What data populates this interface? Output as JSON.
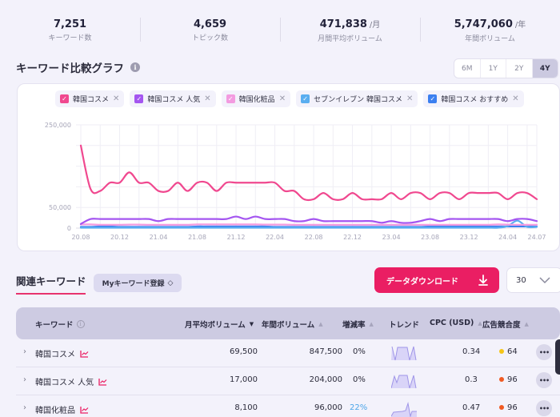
{
  "stats": [
    {
      "value": "7,251",
      "unit": "",
      "label": "キーワード数"
    },
    {
      "value": "4,659",
      "unit": "",
      "label": "トピック数"
    },
    {
      "value": "471,838",
      "unit": "/月",
      "label": "月間平均ボリューム"
    },
    {
      "value": "5,747,060",
      "unit": "/年",
      "label": "年間ボリューム"
    }
  ],
  "compare": {
    "title": "キーワード比較グラフ",
    "info_icon": "i",
    "ranges": [
      {
        "label": "6M",
        "active": false
      },
      {
        "label": "1Y",
        "active": false
      },
      {
        "label": "2Y",
        "active": false
      },
      {
        "label": "4Y",
        "active": true
      }
    ],
    "legend": [
      {
        "label": "韓国コスメ",
        "color": "#f0488f",
        "checked": true
      },
      {
        "label": "韓国コスメ 人気",
        "color": "#a455f0",
        "checked": true
      },
      {
        "label": "韓国化粧品",
        "color": "#f39be0",
        "checked": true
      },
      {
        "label": "セブンイレブン 韓国コスメ",
        "color": "#5aaef0",
        "checked": true
      },
      {
        "label": "韓国コスメ おすすめ",
        "color": "#3b7ff0",
        "checked": true
      }
    ],
    "check_glyph": "✓",
    "remove_glyph": "✕"
  },
  "chart_data": {
    "type": "line",
    "title": "キーワード比較グラフ",
    "xlabel": "",
    "ylabel": "",
    "ylim": [
      0,
      250000
    ],
    "y_ticks": [
      "250,000",
      "50,000",
      "0"
    ],
    "x_tick_labels": [
      "20.08",
      "20.12",
      "21.04",
      "21.08",
      "21.12",
      "22.04",
      "22.08",
      "22.12",
      "23.04",
      "23.08",
      "23.12",
      "24.04",
      "24.07"
    ],
    "grid": true,
    "legend_position": "top",
    "x": [
      "20.08",
      "20.09",
      "20.10",
      "20.11",
      "20.12",
      "21.01",
      "21.02",
      "21.03",
      "21.04",
      "21.05",
      "21.06",
      "21.07",
      "21.08",
      "21.09",
      "21.10",
      "21.11",
      "21.12",
      "22.01",
      "22.02",
      "22.03",
      "22.04",
      "22.05",
      "22.06",
      "22.07",
      "22.08",
      "22.09",
      "22.10",
      "22.11",
      "22.12",
      "23.01",
      "23.02",
      "23.03",
      "23.04",
      "23.05",
      "23.06",
      "23.07",
      "23.08",
      "23.09",
      "23.10",
      "23.11",
      "23.12",
      "24.01",
      "24.02",
      "24.03",
      "24.04",
      "24.05",
      "24.06",
      "24.07"
    ],
    "series": [
      {
        "name": "韓国コスメ",
        "color": "#f0488f",
        "values": [
          200000,
          95000,
          90000,
          110000,
          110000,
          135000,
          110000,
          110000,
          90000,
          90000,
          110000,
          90000,
          110000,
          110000,
          90000,
          110000,
          110000,
          110000,
          110000,
          110000,
          110000,
          90000,
          90000,
          70000,
          70000,
          85000,
          70000,
          70000,
          85000,
          70000,
          70000,
          70000,
          85000,
          70000,
          85000,
          85000,
          70000,
          85000,
          85000,
          70000,
          85000,
          85000,
          85000,
          85000,
          70000,
          85000,
          85000,
          70000
        ]
      },
      {
        "name": "韓国コスメ 人気",
        "color": "#a455f0",
        "values": [
          10000,
          22000,
          22000,
          22000,
          22000,
          22000,
          22000,
          22000,
          17000,
          22000,
          22000,
          22000,
          22000,
          22000,
          22000,
          22000,
          28000,
          22000,
          28000,
          22000,
          22000,
          22000,
          17000,
          17000,
          22000,
          17000,
          17000,
          17000,
          17000,
          17000,
          17000,
          13000,
          17000,
          13000,
          13000,
          17000,
          22000,
          17000,
          22000,
          22000,
          22000,
          22000,
          22000,
          22000,
          17000,
          22000,
          22000,
          17000
        ]
      },
      {
        "name": "韓国化粧品",
        "color": "#f39be0",
        "values": [
          9000,
          9000,
          8000,
          8000,
          8000,
          8500,
          8500,
          8000,
          8000,
          8000,
          8000,
          8000,
          9000,
          9000,
          9000,
          9000,
          9000,
          9000,
          9000,
          8500,
          8500,
          8500,
          8000,
          8000,
          8000,
          8000,
          8000,
          8000,
          8000,
          8000,
          8000,
          8000,
          8000,
          8000,
          8000,
          8000,
          8000,
          8000,
          8000,
          8000,
          8000,
          8000,
          8000,
          9000,
          8500,
          8000,
          8000,
          8100
        ]
      },
      {
        "name": "セブンイレブン 韓国コスメ",
        "color": "#5aaef0",
        "values": [
          1000,
          1000,
          1000,
          1000,
          1000,
          1000,
          1000,
          1000,
          1000,
          1000,
          1000,
          1000,
          1000,
          1000,
          1000,
          1000,
          1000,
          1000,
          1000,
          1000,
          1000,
          1000,
          1000,
          1000,
          1000,
          1000,
          1000,
          1000,
          1000,
          1000,
          1000,
          1000,
          1000,
          1000,
          1000,
          1000,
          1000,
          1000,
          1000,
          1000,
          1000,
          1000,
          1000,
          1000,
          5000,
          18000,
          3000,
          3000
        ]
      },
      {
        "name": "韓国コスメ おすすめ",
        "color": "#3b7ff0",
        "values": [
          3000,
          3000,
          4000,
          4000,
          3000,
          3000,
          3000,
          3000,
          3000,
          3000,
          3000,
          3000,
          4000,
          4000,
          4000,
          4000,
          4000,
          4000,
          4000,
          4000,
          3000,
          3000,
          3000,
          3000,
          3000,
          3000,
          3000,
          3000,
          3000,
          3000,
          3000,
          3000,
          3000,
          3000,
          3000,
          3000,
          4000,
          4000,
          4000,
          4000,
          4000,
          4000,
          4000,
          4000,
          4000,
          4000,
          4000,
          4000
        ]
      }
    ]
  },
  "related": {
    "tab_label": "関連キーワード",
    "my_keyword_button": "Myキーワード登録",
    "my_keyword_icon": "◇",
    "download_button": "データダウンロード",
    "page_size": "30"
  },
  "table": {
    "headers": {
      "keyword": "キーワード",
      "keyword_info": "i",
      "monthly": "月平均ボリューム",
      "yearly": "年間ボリューム",
      "change": "増減率",
      "trend": "トレンド",
      "cpc": "CPC (USD)",
      "competition": "広告競合度"
    },
    "sort_active": "▼",
    "sort_inactive": "▲",
    "rows": [
      {
        "keyword": "韓国コスメ",
        "monthly": "69,500",
        "yearly": "847,500",
        "change": "0%",
        "change_color": "#2b2b3b",
        "cpc": "0.34",
        "competition": "64",
        "comp_color": "#f5c518",
        "more": "•••"
      },
      {
        "keyword": "韓国コスメ 人気",
        "monthly": "17,000",
        "yearly": "204,000",
        "change": "0%",
        "change_color": "#2b2b3b",
        "cpc": "0.3",
        "competition": "96",
        "comp_color": "#f05a22",
        "more": "•••"
      },
      {
        "keyword": "韓国化粧品",
        "monthly": "8,100",
        "yearly": "96,000",
        "change": "22%",
        "change_color": "#4da6e8",
        "cpc": "0.47",
        "competition": "96",
        "comp_color": "#f05a22",
        "more": "•••"
      }
    ],
    "expand_glyph": "›"
  }
}
